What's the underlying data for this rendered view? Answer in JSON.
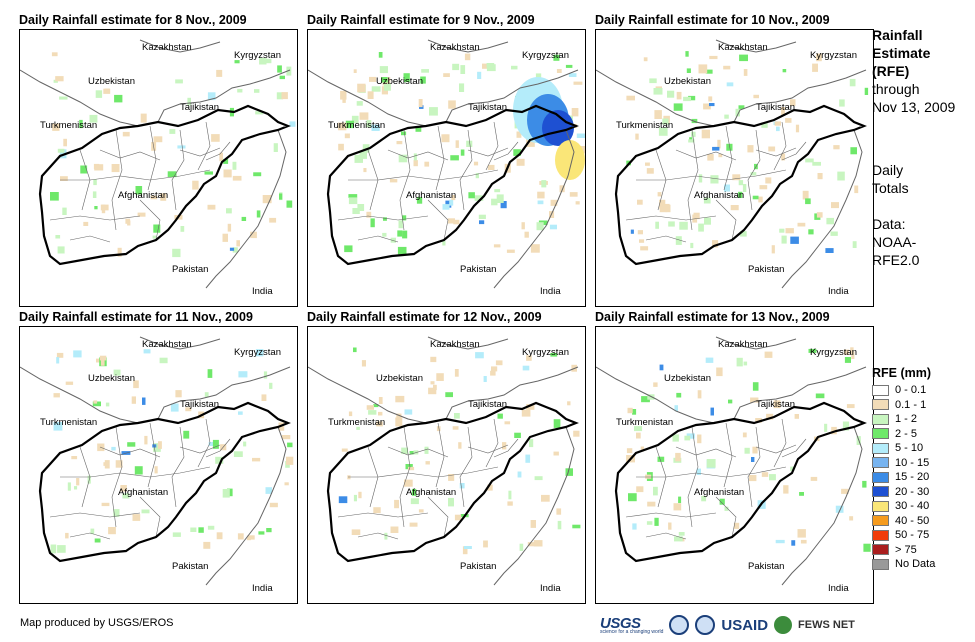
{
  "panels": [
    {
      "title": "Daily Rainfall estimate for 8 Nov., 2009"
    },
    {
      "title": "Daily Rainfall estimate for 9 Nov., 2009"
    },
    {
      "title": "Daily Rainfall estimate for 10 Nov., 2009"
    },
    {
      "title": "Daily Rainfall estimate for 11 Nov., 2009"
    },
    {
      "title": "Daily Rainfall estimate for 12 Nov., 2009"
    },
    {
      "title": "Daily Rainfall estimate for 13 Nov., 2009"
    }
  ],
  "map_labels": {
    "kazakhstan": "Kazakhstan",
    "kyrgyzstan": "Kyrgyzstan",
    "uzbekistan": "Uzbekistan",
    "tajikistan": "Tajikistan",
    "turkmenistan": "Turkmenistan",
    "afghanistan": "Afghanistan",
    "pakistan": "Pakistan",
    "india": "India"
  },
  "sidebar": {
    "line1": "Rainfall",
    "line2": "Estimate",
    "line3": "(RFE)",
    "line4": "through",
    "line5": "Nov 13, 2009",
    "daily1": "Daily",
    "daily2": "Totals",
    "data1": "Data:",
    "data2": "NOAA-",
    "data3": "RFE2.0"
  },
  "legend": {
    "title": "RFE (mm)",
    "items": [
      {
        "label": "0 - 0.1",
        "color": "#ffffff"
      },
      {
        "label": "0.1 - 1",
        "color": "#f2dcb8"
      },
      {
        "label": "1 - 2",
        "color": "#c8f5c0"
      },
      {
        "label": "2 - 5",
        "color": "#6fe86a"
      },
      {
        "label": "5 - 10",
        "color": "#b4ecfa"
      },
      {
        "label": "10 - 15",
        "color": "#78b4f0"
      },
      {
        "label": "15 - 20",
        "color": "#3c8ce6"
      },
      {
        "label": "20 - 30",
        "color": "#1e50d2"
      },
      {
        "label": "30 - 40",
        "color": "#fae678"
      },
      {
        "label": "40 - 50",
        "color": "#f59b1e"
      },
      {
        "label": "50 - 75",
        "color": "#f03c0a"
      },
      {
        "label": "> 75",
        "color": "#aa1e1e"
      },
      {
        "label": "No Data",
        "color": "#999999"
      }
    ]
  },
  "footer": {
    "credit": "Map produced by USGS/EROS",
    "logo_usgs": "USGS",
    "logo_usgs_tagline": "science for a changing world",
    "logo_usaid": "USAID",
    "logo_fews": "FEWS NET"
  }
}
